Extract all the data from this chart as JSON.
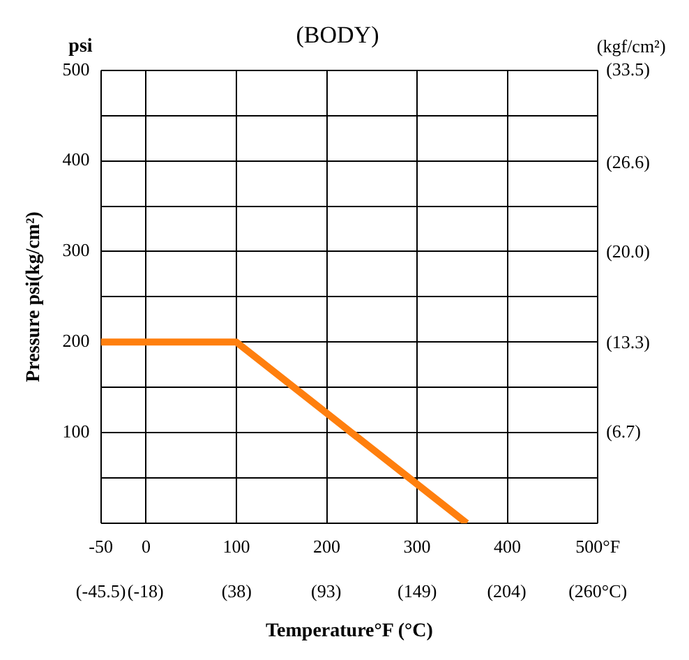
{
  "chart_data": {
    "type": "line",
    "title": "(BODY)",
    "xlabel": "Temperature°F (°C)",
    "ylabel": "Pressure psi(kg/cm²)",
    "y2label": "(kgf/cm²)",
    "annotations": [
      "psi"
    ],
    "series": [
      {
        "color": "#ff7f0e",
        "x": [
          -50,
          100,
          355
        ],
        "values": [
          200,
          200,
          0
        ]
      }
    ],
    "xlim": [
      -50,
      500
    ],
    "xticks": [
      -50,
      0,
      100,
      200,
      300,
      400,
      {
        "value": 500,
        "label": "500°F"
      }
    ],
    "x2lim": [
      -45.5,
      260
    ],
    "x2ticks": [
      {
        "value": -45.5,
        "label": "(-45.5)"
      },
      {
        "value": -18,
        "label": "(-18)"
      },
      {
        "value": 38,
        "label": "(38)"
      },
      {
        "value": 93,
        "label": "(93)"
      },
      {
        "value": 149,
        "label": "(149)"
      },
      {
        "value": 204,
        "label": "(204)"
      },
      {
        "value": 260,
        "label": "(260°C)"
      }
    ],
    "ylim": [
      0,
      500
    ],
    "yticks": [
      {
        "value": 0,
        "label": null
      },
      {
        "value": 50,
        "label": null
      },
      100,
      {
        "value": 150,
        "label": null
      },
      200,
      {
        "value": 250,
        "label": null
      },
      300,
      {
        "value": 350,
        "label": null
      },
      400,
      {
        "value": 450,
        "label": null
      },
      500
    ],
    "y2lim": [
      0,
      33.5
    ],
    "y2ticks": [
      {
        "value": 6.7,
        "label": "(6.7)"
      },
      {
        "value": 13.3,
        "label": "(13.3)"
      },
      {
        "value": 20.0,
        "label": "(20.0)"
      },
      {
        "value": 26.6,
        "label": "(26.6)"
      },
      {
        "value": 33.5,
        "label": "(33.5)"
      }
    ],
    "grid": true,
    "legend": false,
    "marker": "none",
    "line_style": "solid"
  }
}
